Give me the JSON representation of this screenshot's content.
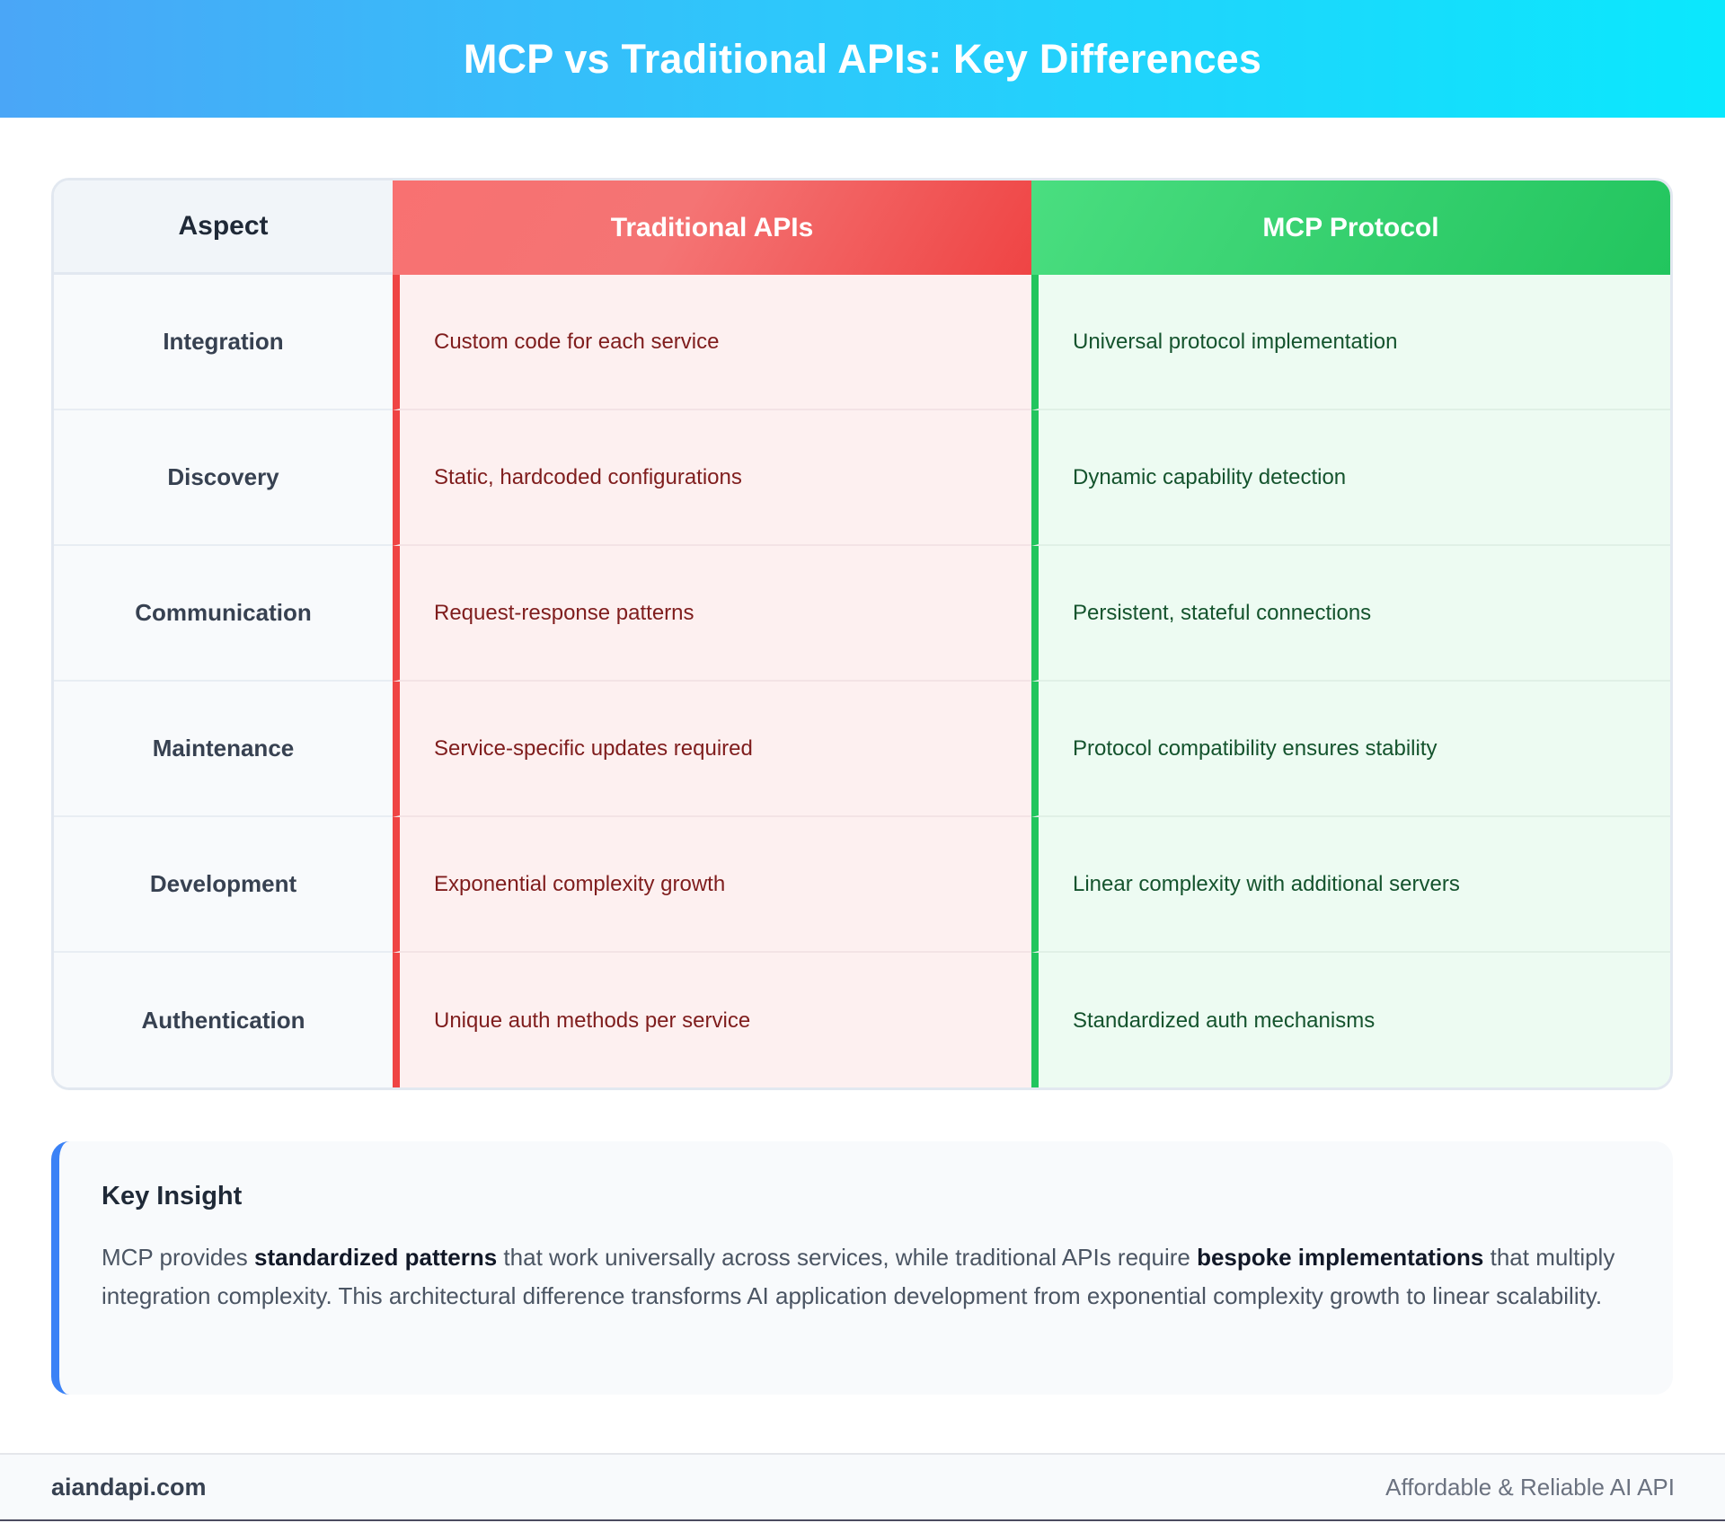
{
  "title": "MCP vs Traditional APIs: Key Differences",
  "table": {
    "headers": {
      "aspect": "Aspect",
      "traditional": "Traditional APIs",
      "mcp": "MCP Protocol"
    },
    "rows": [
      {
        "aspect": "Integration",
        "traditional": "Custom code for each service",
        "mcp": "Universal protocol implementation"
      },
      {
        "aspect": "Discovery",
        "traditional": "Static, hardcoded configurations",
        "mcp": "Dynamic capability detection"
      },
      {
        "aspect": "Communication",
        "traditional": "Request-response patterns",
        "mcp": "Persistent, stateful connections"
      },
      {
        "aspect": "Maintenance",
        "traditional": "Service-specific updates required",
        "mcp": "Protocol compatibility ensures stability"
      },
      {
        "aspect": "Development",
        "traditional": "Exponential complexity growth",
        "mcp": "Linear complexity with additional servers"
      },
      {
        "aspect": "Authentication",
        "traditional": "Unique auth methods per service",
        "mcp": "Standardized auth mechanisms"
      }
    ]
  },
  "insight": {
    "title": "Key Insight",
    "text_1": "MCP provides ",
    "bold_1": "standardized patterns",
    "text_2": " that work universally across services, while traditional APIs require ",
    "bold_2": "bespoke implementations",
    "text_3": " that multiply integration complexity. This architectural difference transforms AI application development from exponential complexity growth to linear scalability."
  },
  "footer": {
    "brand": "aiandapi.com",
    "tagline": "Affordable & Reliable AI API"
  },
  "colors": {
    "traditional_accent": "#ef4444",
    "mcp_accent": "#22c55e",
    "insight_accent": "#3b82f6",
    "header_gradient_start": "#4aa6f7",
    "header_gradient_end": "#0ae8fd"
  }
}
